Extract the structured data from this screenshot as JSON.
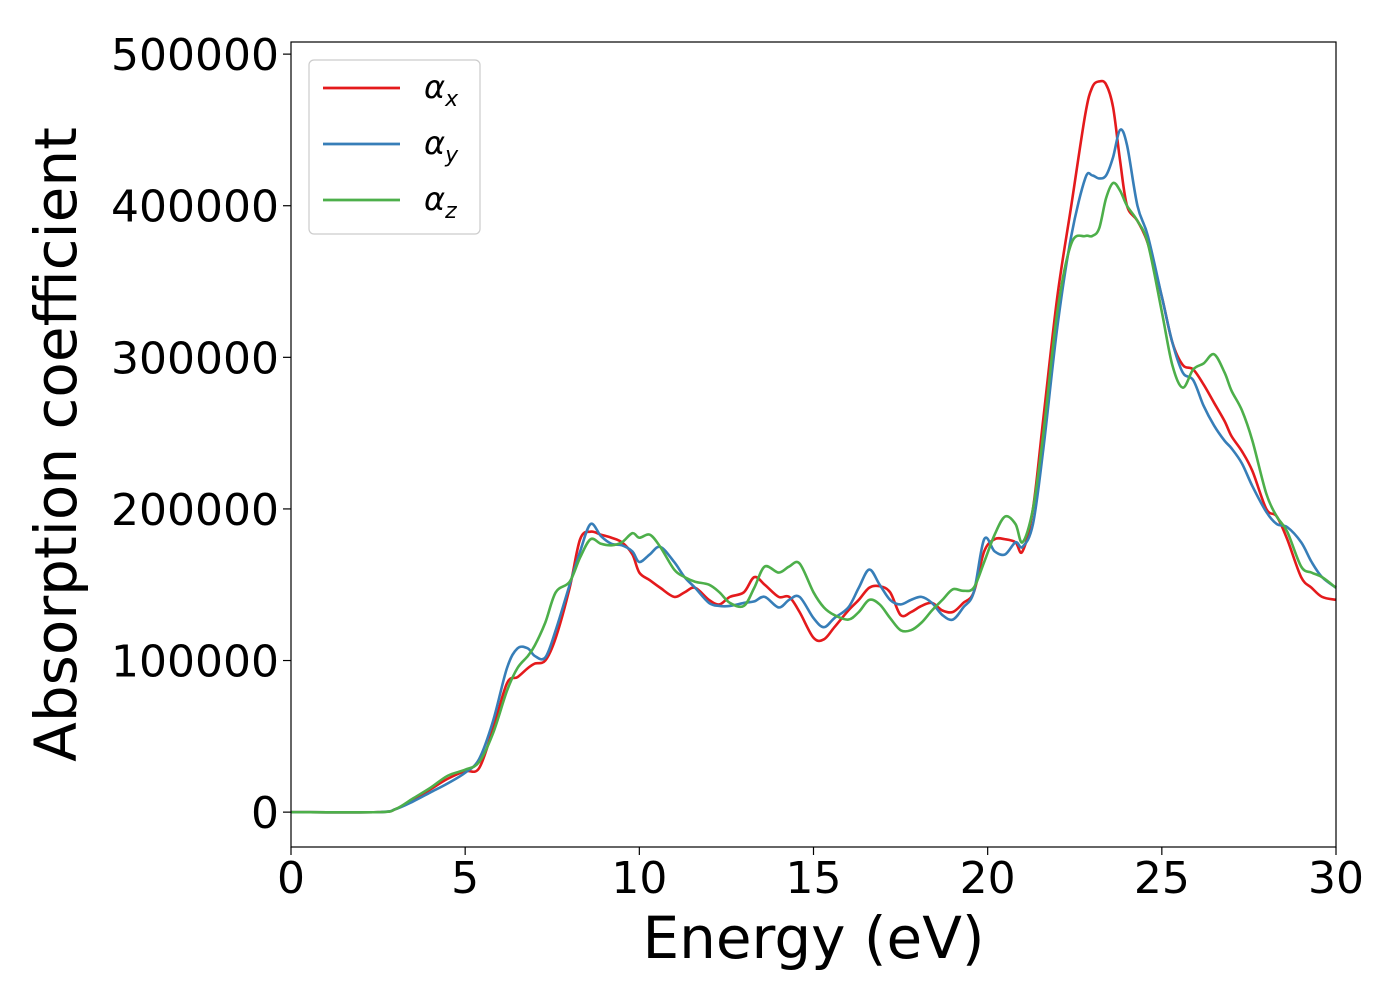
{
  "chart_data": {
    "type": "line",
    "title": "",
    "xlabel": "Energy (eV)",
    "ylabel": "Absorption coefficient",
    "xlim": [
      0,
      30
    ],
    "ylim": [
      -23000,
      508000
    ],
    "xticks": [
      0,
      5,
      10,
      15,
      20,
      25,
      30
    ],
    "xtick_labels": [
      "0",
      "5",
      "10",
      "15",
      "20",
      "25",
      "30"
    ],
    "yticks": [
      0,
      100000,
      200000,
      300000,
      400000,
      500000
    ],
    "ytick_labels": [
      "0",
      "100000",
      "200000",
      "300000",
      "400000",
      "500000"
    ],
    "grid": false,
    "legend_position": "top-left",
    "series": [
      {
        "name": "αx",
        "symbol": "α",
        "subscript": "x",
        "color": "#e41a1c",
        "x": [
          0,
          2.5,
          3.0,
          3.5,
          4.0,
          4.5,
          5.0,
          5.4,
          5.8,
          6.2,
          6.5,
          6.8,
          7.0,
          7.3,
          7.6,
          8.0,
          8.3,
          8.6,
          8.9,
          9.2,
          9.5,
          9.8,
          10.0,
          10.3,
          10.6,
          11.0,
          11.3,
          11.6,
          12.0,
          12.3,
          12.6,
          13.0,
          13.3,
          13.6,
          14.0,
          14.3,
          14.6,
          15.0,
          15.3,
          15.6,
          16.0,
          16.3,
          16.6,
          16.9,
          17.2,
          17.5,
          17.8,
          18.1,
          18.4,
          18.7,
          19.0,
          19.3,
          19.6,
          19.9,
          20.2,
          20.5,
          20.8,
          21.0,
          21.3,
          21.6,
          22.0,
          22.4,
          22.8,
          23.0,
          23.2,
          23.4,
          23.6,
          23.8,
          24.0,
          24.3,
          24.6,
          25.0,
          25.3,
          25.6,
          25.9,
          26.2,
          26.5,
          26.8,
          27.0,
          27.3,
          27.6,
          28.0,
          28.3,
          28.6,
          29.0,
          29.3,
          29.6,
          30.0
        ],
        "y": [
          0,
          0,
          2000,
          8000,
          15000,
          22000,
          27000,
          29000,
          55000,
          85000,
          89000,
          95000,
          98000,
          100000,
          115000,
          148000,
          180000,
          185000,
          183000,
          181000,
          178000,
          170000,
          158000,
          153000,
          148000,
          142000,
          145000,
          148000,
          140000,
          137000,
          142000,
          145000,
          155000,
          150000,
          142000,
          142000,
          132000,
          115000,
          114000,
          122000,
          133000,
          140000,
          148000,
          149000,
          145000,
          130000,
          132000,
          136000,
          138000,
          133000,
          132000,
          138000,
          145000,
          172000,
          180000,
          180000,
          178000,
          172000,
          200000,
          260000,
          340000,
          400000,
          460000,
          478000,
          482000,
          480000,
          465000,
          430000,
          400000,
          390000,
          375000,
          340000,
          310000,
          295000,
          292000,
          282000,
          270000,
          258000,
          248000,
          238000,
          225000,
          200000,
          195000,
          180000,
          155000,
          148000,
          142000,
          140000
        ]
      },
      {
        "name": "αy",
        "symbol": "α",
        "subscript": "y",
        "color": "#377eb8",
        "x": [
          0,
          2.5,
          3.0,
          3.5,
          4.0,
          4.5,
          5.0,
          5.4,
          5.8,
          6.2,
          6.5,
          6.8,
          7.0,
          7.3,
          7.6,
          8.0,
          8.3,
          8.6,
          8.9,
          9.2,
          9.5,
          9.8,
          10.0,
          10.3,
          10.6,
          11.0,
          11.3,
          11.6,
          12.0,
          12.3,
          12.6,
          13.0,
          13.3,
          13.6,
          14.0,
          14.3,
          14.6,
          15.0,
          15.3,
          15.6,
          16.0,
          16.3,
          16.6,
          16.9,
          17.2,
          17.5,
          17.8,
          18.1,
          18.4,
          18.7,
          19.0,
          19.3,
          19.6,
          19.9,
          20.2,
          20.5,
          20.8,
          21.0,
          21.3,
          21.6,
          22.0,
          22.4,
          22.8,
          23.0,
          23.2,
          23.4,
          23.6,
          23.8,
          24.0,
          24.3,
          24.6,
          25.0,
          25.3,
          25.6,
          25.9,
          26.2,
          26.5,
          26.8,
          27.0,
          27.3,
          27.6,
          28.0,
          28.3,
          28.6,
          29.0,
          29.3,
          29.6,
          30.0
        ],
        "y": [
          0,
          0,
          2000,
          7000,
          13000,
          19000,
          26000,
          35000,
          60000,
          95000,
          108000,
          108000,
          103000,
          102000,
          120000,
          150000,
          172000,
          190000,
          182000,
          177000,
          176000,
          172000,
          165000,
          170000,
          175000,
          165000,
          155000,
          148000,
          138000,
          136000,
          136000,
          138000,
          139000,
          142000,
          135000,
          140000,
          142000,
          128000,
          122000,
          128000,
          135000,
          148000,
          160000,
          150000,
          140000,
          137000,
          140000,
          142000,
          138000,
          130000,
          127000,
          135000,
          145000,
          180000,
          172000,
          170000,
          178000,
          175000,
          190000,
          240000,
          320000,
          380000,
          418000,
          420000,
          418000,
          420000,
          432000,
          450000,
          440000,
          400000,
          380000,
          340000,
          310000,
          290000,
          285000,
          268000,
          255000,
          245000,
          240000,
          230000,
          215000,
          198000,
          190000,
          188000,
          178000,
          165000,
          155000,
          148000
        ]
      },
      {
        "name": "αz",
        "symbol": "α",
        "subscript": "z",
        "color": "#4daf4a",
        "x": [
          0,
          2.5,
          3.0,
          3.5,
          4.0,
          4.5,
          5.0,
          5.4,
          5.8,
          6.2,
          6.5,
          6.8,
          7.0,
          7.3,
          7.6,
          8.0,
          8.3,
          8.6,
          8.9,
          9.2,
          9.5,
          9.8,
          10.0,
          10.3,
          10.6,
          11.0,
          11.3,
          11.6,
          12.0,
          12.3,
          12.6,
          13.0,
          13.3,
          13.6,
          14.0,
          14.3,
          14.6,
          15.0,
          15.3,
          15.6,
          16.0,
          16.3,
          16.6,
          16.9,
          17.2,
          17.5,
          17.8,
          18.1,
          18.4,
          18.7,
          19.0,
          19.3,
          19.6,
          19.9,
          20.2,
          20.5,
          20.8,
          21.0,
          21.3,
          21.6,
          22.0,
          22.4,
          22.8,
          23.0,
          23.2,
          23.4,
          23.6,
          23.8,
          24.0,
          24.3,
          24.6,
          25.0,
          25.3,
          25.6,
          25.9,
          26.2,
          26.5,
          26.8,
          27.0,
          27.3,
          27.6,
          28.0,
          28.3,
          28.6,
          29.0,
          29.3,
          29.6,
          30.0
        ],
        "y": [
          0,
          0,
          2000,
          9000,
          16000,
          24000,
          28000,
          33000,
          52000,
          80000,
          95000,
          103000,
          110000,
          125000,
          145000,
          152000,
          168000,
          180000,
          177000,
          176000,
          178000,
          184000,
          181000,
          183000,
          175000,
          160000,
          155000,
          152000,
          150000,
          145000,
          138000,
          136000,
          148000,
          162000,
          158000,
          162000,
          164000,
          145000,
          135000,
          130000,
          127000,
          132000,
          140000,
          137000,
          128000,
          120000,
          120000,
          125000,
          133000,
          140000,
          147000,
          146000,
          148000,
          165000,
          183000,
          195000,
          190000,
          178000,
          200000,
          250000,
          330000,
          375000,
          380000,
          380000,
          385000,
          405000,
          415000,
          410000,
          400000,
          390000,
          375000,
          330000,
          295000,
          280000,
          292000,
          296000,
          302000,
          290000,
          278000,
          265000,
          245000,
          210000,
          195000,
          185000,
          162000,
          158000,
          155000,
          148000
        ]
      }
    ]
  }
}
